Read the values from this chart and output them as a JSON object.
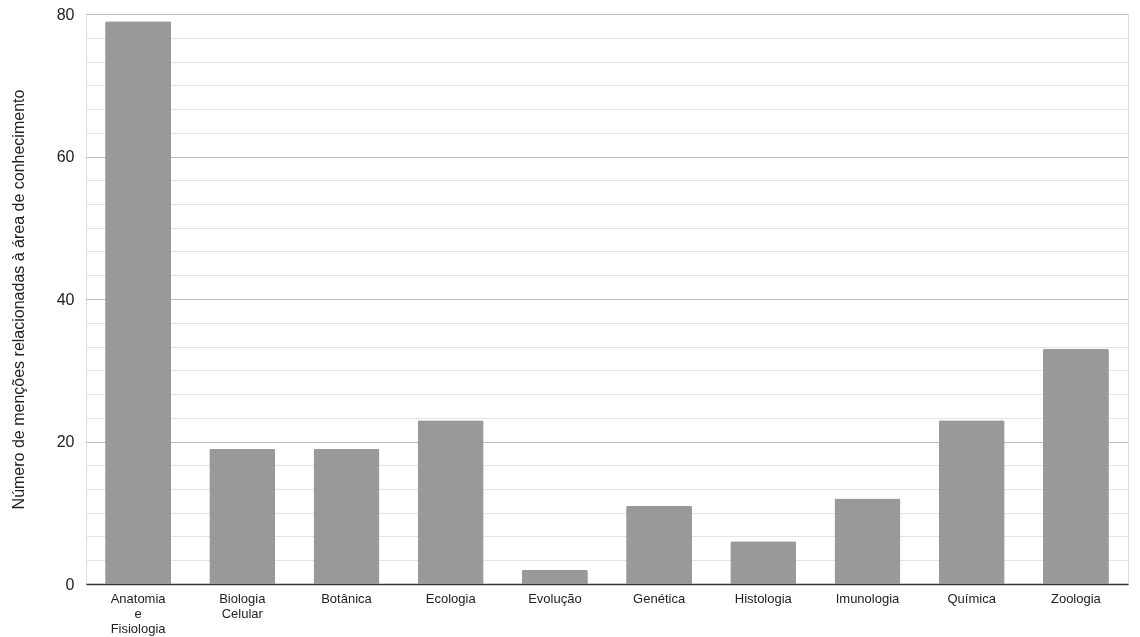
{
  "chart_data": {
    "type": "bar",
    "ylabel": "Número de menções relacionadas à área de conhecimento",
    "categories": [
      "Anatomia e Fisiologia",
      "Biologia Celular",
      "Botânica",
      "Ecologia",
      "Evolução",
      "Genética",
      "Histologia",
      "Imunologia",
      "Química",
      "Zoologia"
    ],
    "values": [
      79,
      19,
      19,
      23,
      2,
      11,
      6,
      12,
      23,
      33
    ],
    "color": "#999999",
    "ylim": [
      0,
      80
    ],
    "yticks": [
      0,
      {
        "value": 3.333,
        "label": null
      },
      {
        "value": 6.667,
        "label": null
      },
      {
        "value": 10,
        "label": null
      },
      {
        "value": 13.333,
        "label": null
      },
      {
        "value": 16.667,
        "label": null
      },
      20,
      {
        "value": 23.333,
        "label": null
      },
      {
        "value": 26.667,
        "label": null
      },
      {
        "value": 30,
        "label": null
      },
      {
        "value": 33.333,
        "label": null
      },
      {
        "value": 36.667,
        "label": null
      },
      40,
      {
        "value": 43.333,
        "label": null
      },
      {
        "value": 46.667,
        "label": null
      },
      {
        "value": 50,
        "label": null
      },
      {
        "value": 53.333,
        "label": null
      },
      {
        "value": 56.667,
        "label": null
      },
      60,
      {
        "value": 63.333,
        "label": null
      },
      {
        "value": 66.667,
        "label": null
      },
      {
        "value": 70,
        "label": null
      },
      {
        "value": 73.333,
        "label": null
      },
      {
        "value": 76.667,
        "label": null
      },
      80
    ],
    "grid": "y"
  }
}
